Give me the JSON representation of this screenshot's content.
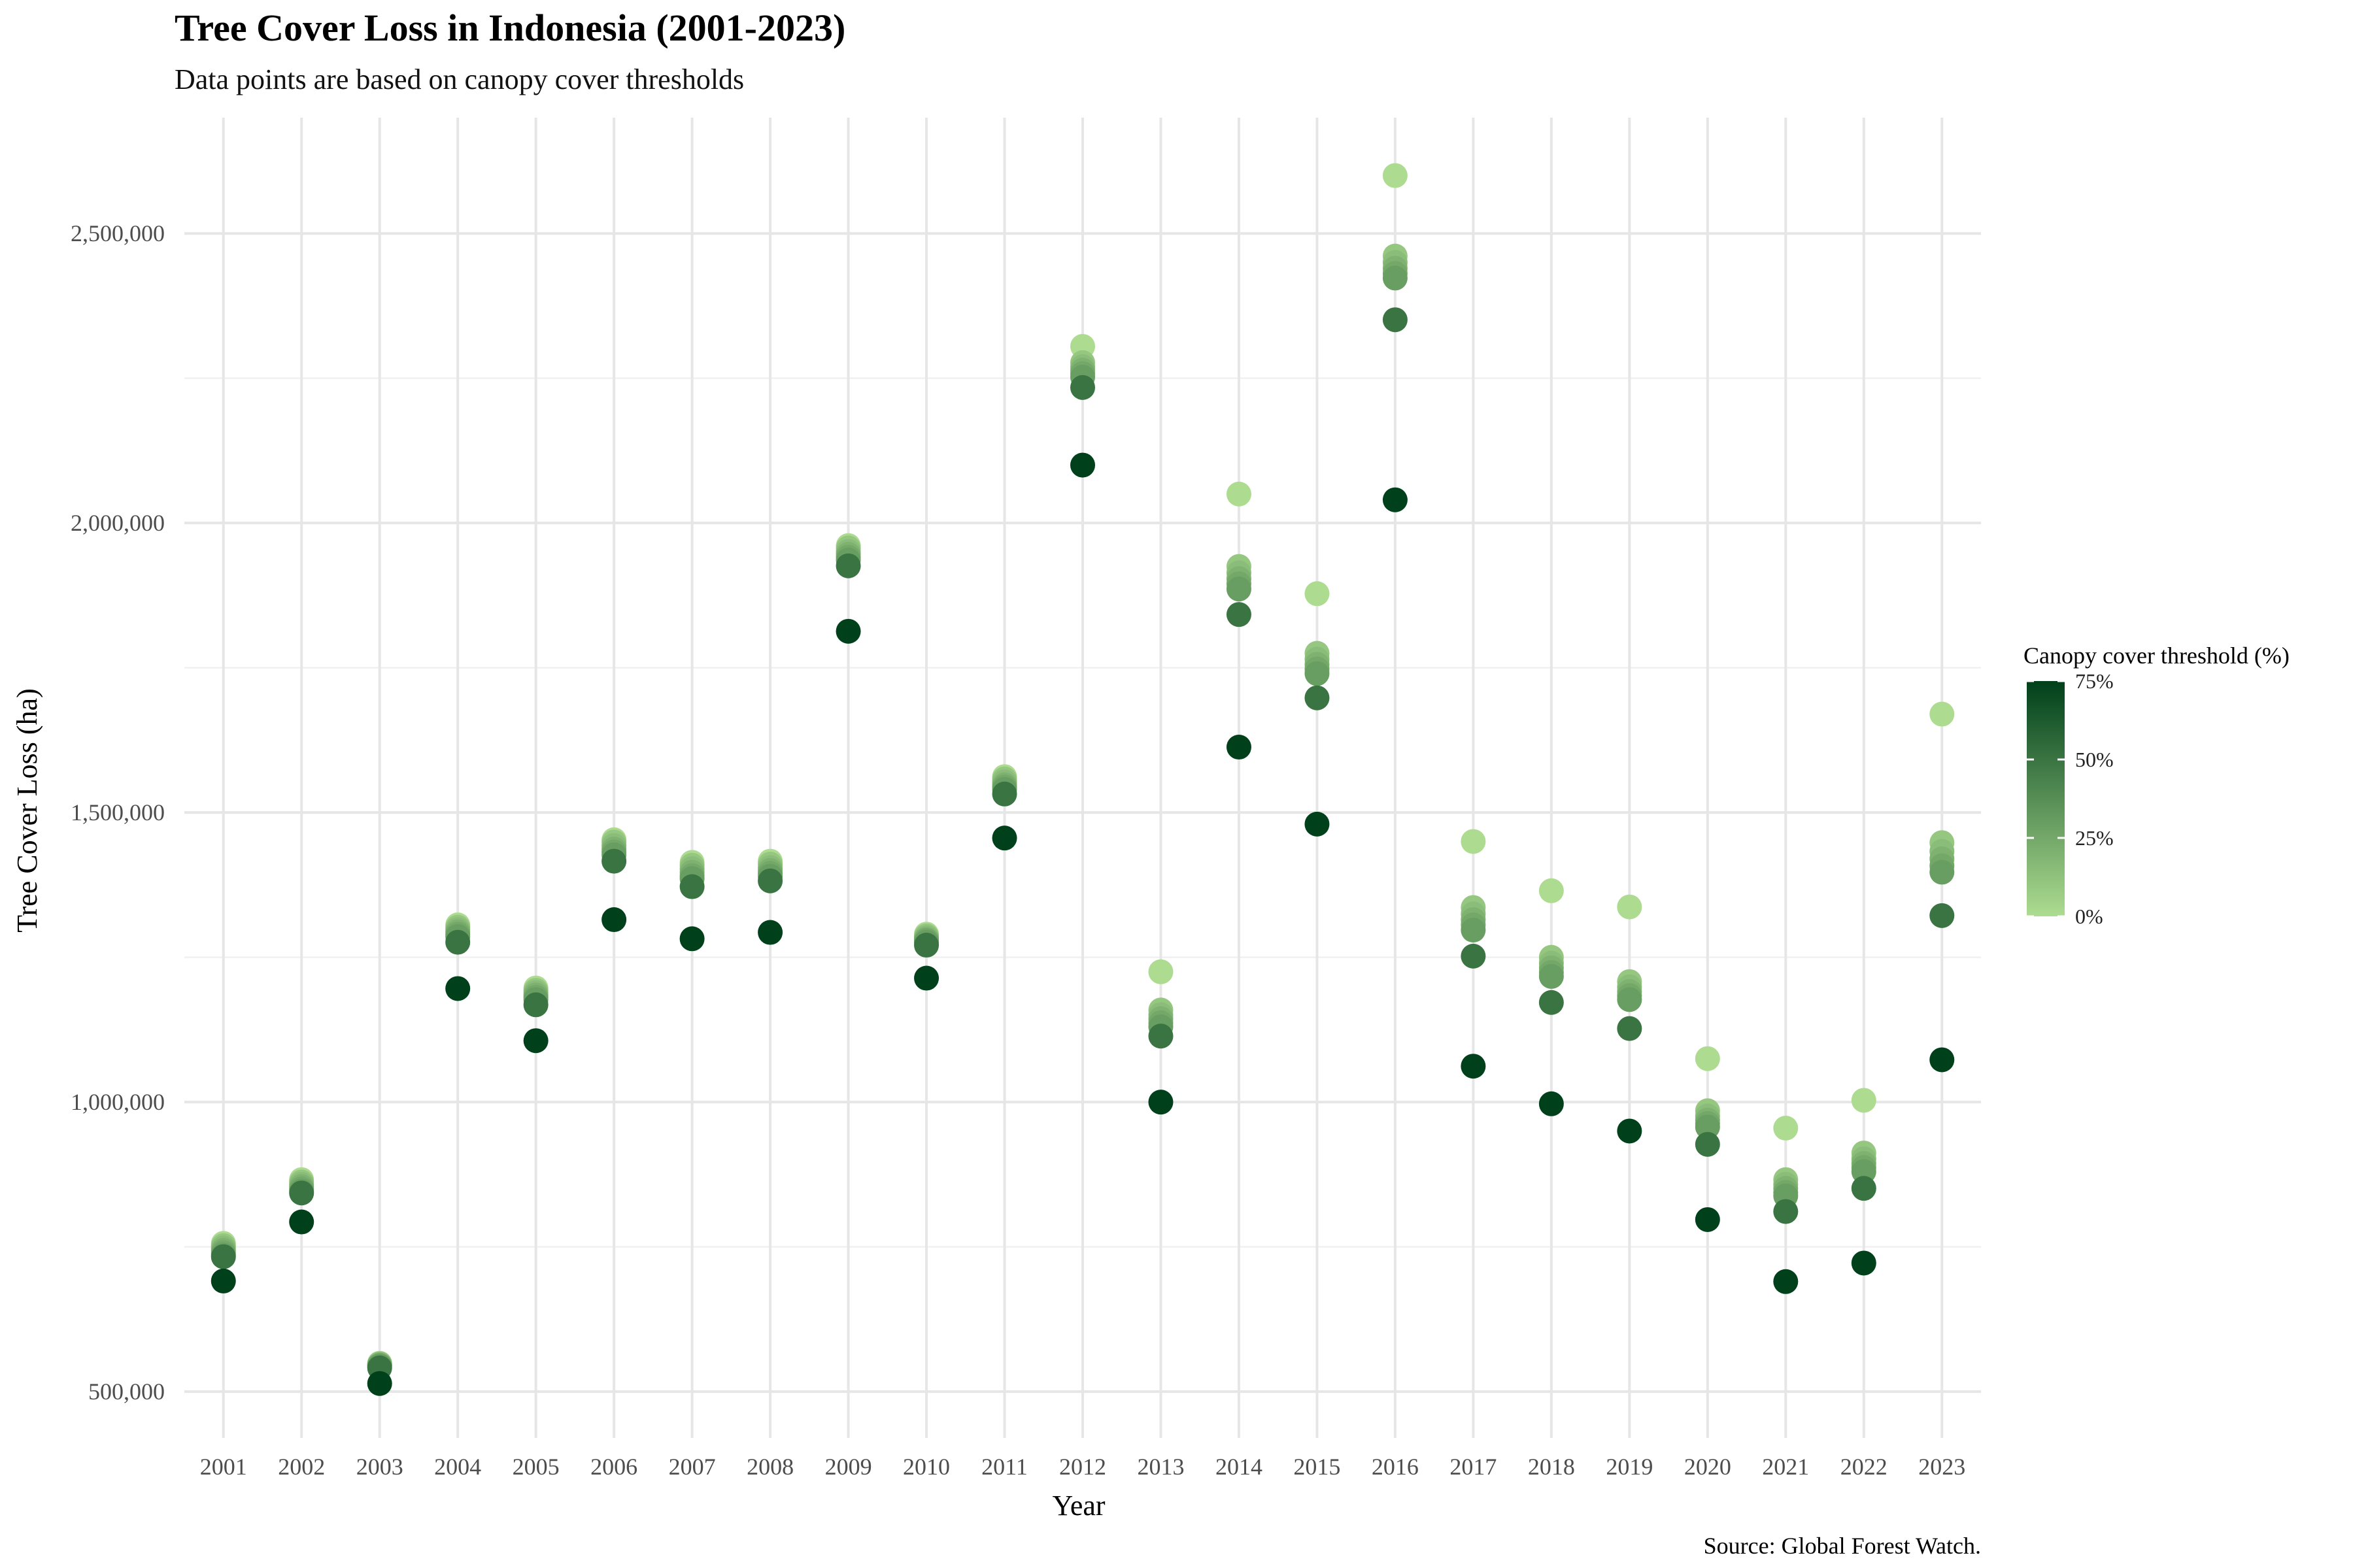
{
  "chart_data": {
    "type": "scatter",
    "title": "Tree Cover Loss in Indonesia (2001-2023)",
    "subtitle": "Data points are based on canopy cover thresholds",
    "xlabel": "Year",
    "ylabel": "Tree Cover Loss (ha)",
    "caption": "Source: Global Forest Watch.",
    "ylim": [
      420000,
      2700000
    ],
    "y_ticks": [
      500000,
      1000000,
      1500000,
      2000000,
      2500000
    ],
    "y_tick_labels": [
      "500,000",
      "1,000,000",
      "1,500,000",
      "2,000,000",
      "2,500,000"
    ],
    "grid": true,
    "legend": {
      "title": "Canopy cover threshold (%)",
      "placement": "right",
      "type": "colorbar",
      "range": [
        0,
        75
      ],
      "ticks": [
        0,
        25,
        50,
        75
      ],
      "tick_labels": [
        "0%",
        "25%",
        "50%",
        "75%"
      ],
      "color_low": "#addc91",
      "color_high": "#00401a"
    },
    "thresholds": [
      0,
      10,
      15,
      20,
      25,
      30,
      50,
      75
    ],
    "x": [
      "2001",
      "2002",
      "2003",
      "2004",
      "2005",
      "2006",
      "2007",
      "2008",
      "2009",
      "2010",
      "2011",
      "2012",
      "2013",
      "2014",
      "2015",
      "2016",
      "2017",
      "2018",
      "2019",
      "2020",
      "2021",
      "2022",
      "2023"
    ],
    "series": [
      {
        "threshold": 0,
        "values": [
          756000,
          866000,
          549000,
          1306000,
          1197000,
          1453000,
          1414000,
          1416000,
          1961000,
          1290000,
          1562000,
          2305000,
          1225000,
          2050000,
          1878000,
          2600000,
          1450000,
          1365000,
          1337000,
          1075000,
          955000,
          1003000,
          1670000
        ]
      },
      {
        "threshold": 10,
        "values": [
          752000,
          862000,
          548000,
          1302000,
          1193000,
          1449000,
          1409000,
          1411000,
          1957000,
          1287000,
          1558000,
          2277000,
          1159000,
          1925000,
          1775000,
          2461000,
          1336000,
          1250000,
          1208000,
          985000,
          866000,
          912000,
          1448000
        ]
      },
      {
        "threshold": 15,
        "values": [
          748000,
          858000,
          547000,
          1298000,
          1189000,
          1443000,
          1403000,
          1405000,
          1951000,
          1284000,
          1553000,
          2270000,
          1151000,
          1914000,
          1765000,
          2450000,
          1325000,
          1240000,
          1199000,
          976000,
          858000,
          902000,
          1433000
        ]
      },
      {
        "threshold": 20,
        "values": [
          744000,
          854000,
          546000,
          1294000,
          1185000,
          1437000,
          1397000,
          1400000,
          1946000,
          1281000,
          1548000,
          2264000,
          1144000,
          1904000,
          1756000,
          2440000,
          1315000,
          1232000,
          1191000,
          969000,
          851000,
          894000,
          1420000
        ]
      },
      {
        "threshold": 25,
        "values": [
          740000,
          850000,
          545000,
          1290000,
          1181000,
          1432000,
          1391000,
          1395000,
          1941000,
          1279000,
          1544000,
          2258000,
          1137000,
          1895000,
          1748000,
          2431000,
          1306000,
          1224000,
          1184000,
          963000,
          844000,
          887000,
          1408000
        ]
      },
      {
        "threshold": 30,
        "values": [
          736000,
          846000,
          544000,
          1286000,
          1177000,
          1427000,
          1386000,
          1390000,
          1936000,
          1276000,
          1540000,
          2252000,
          1130000,
          1886000,
          1740000,
          2423000,
          1297000,
          1217000,
          1177000,
          957000,
          838000,
          880000,
          1397000
        ]
      },
      {
        "threshold": 50,
        "values": [
          733000,
          843000,
          541000,
          1276000,
          1168000,
          1416000,
          1372000,
          1382000,
          1926000,
          1271000,
          1532000,
          2234000,
          1114000,
          1842000,
          1698000,
          2351000,
          1252000,
          1172000,
          1127000,
          927000,
          811000,
          851000,
          1322000
        ]
      },
      {
        "threshold": 75,
        "values": [
          691000,
          793000,
          514000,
          1196000,
          1106000,
          1315000,
          1282000,
          1293000,
          1813000,
          1214000,
          1456000,
          2100000,
          1000000,
          1613000,
          1480000,
          2040000,
          1062000,
          997000,
          950000,
          797000,
          690000,
          722000,
          1073000
        ]
      }
    ]
  }
}
